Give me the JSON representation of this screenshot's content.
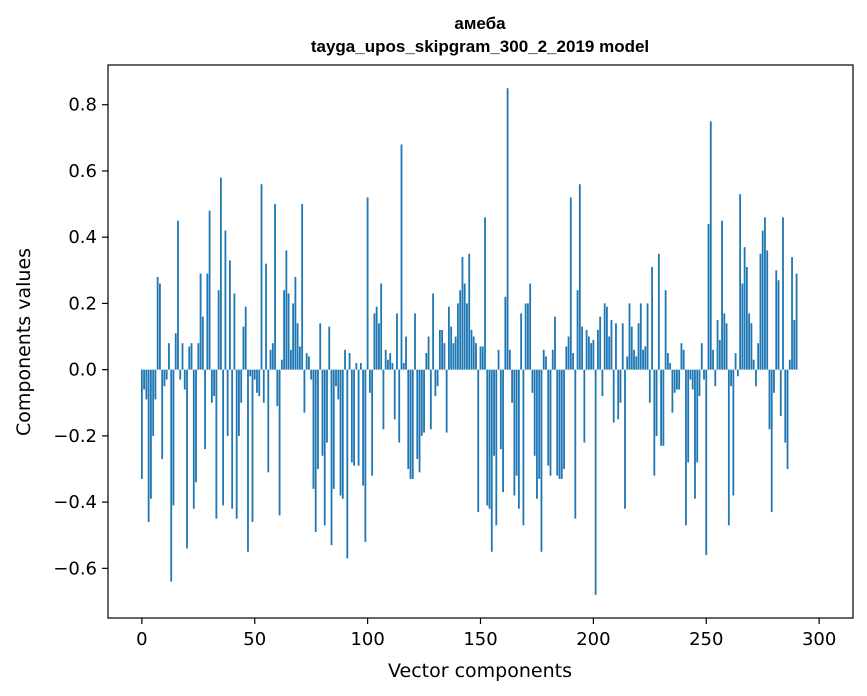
{
  "chart_data": {
    "type": "bar",
    "title": "амеба",
    "subtitle": "tayga_upos_skipgram_300_2_2019 model",
    "xlabel": "Vector components",
    "ylabel": "Components values",
    "xlim": [
      -15,
      315
    ],
    "ylim": [
      -0.75,
      0.92
    ],
    "xticks": [
      0,
      50,
      100,
      150,
      200,
      250,
      300
    ],
    "yticks": [
      -0.6,
      -0.4,
      -0.2,
      0.0,
      0.2,
      0.4,
      0.6,
      0.8
    ],
    "ytick_labels": [
      "−0.6",
      "−0.4",
      "−0.2",
      "0.0",
      "0.2",
      "0.4",
      "0.6",
      "0.8"
    ],
    "bar_color": "#1f77b4",
    "grid": false,
    "values": [
      -0.33,
      -0.06,
      -0.09,
      -0.46,
      -0.39,
      -0.2,
      -0.09,
      0.28,
      0.26,
      -0.27,
      -0.05,
      -0.03,
      0.08,
      -0.64,
      -0.41,
      0.11,
      0.45,
      -0.03,
      0.08,
      -0.06,
      -0.54,
      0.07,
      0.08,
      -0.42,
      -0.34,
      0.08,
      0.29,
      0.16,
      -0.24,
      0.29,
      0.48,
      -0.1,
      -0.08,
      -0.45,
      0.24,
      0.58,
      -0.41,
      0.42,
      -0.2,
      0.33,
      -0.42,
      0.23,
      -0.45,
      -0.2,
      -0.1,
      0.13,
      0.19,
      -0.55,
      -0.02,
      -0.46,
      -0.03,
      -0.07,
      -0.08,
      0.56,
      -0.1,
      0.32,
      -0.31,
      0.06,
      0.08,
      0.5,
      -0.11,
      -0.44,
      0.03,
      0.24,
      0.36,
      0.23,
      0.06,
      0.2,
      0.28,
      0.14,
      0.07,
      0.5,
      -0.13,
      0.05,
      0.04,
      -0.03,
      -0.36,
      -0.49,
      -0.3,
      0.14,
      -0.26,
      -0.47,
      -0.22,
      0.13,
      -0.53,
      -0.36,
      -0.05,
      -0.09,
      -0.38,
      -0.39,
      0.06,
      -0.57,
      0.05,
      -0.28,
      -0.29,
      0.02,
      -0.29,
      0.02,
      -0.35,
      -0.52,
      0.52,
      -0.07,
      -0.32,
      0.17,
      0.19,
      0.14,
      0.26,
      -0.18,
      0.06,
      0.03,
      0.05,
      0.02,
      -0.15,
      0.17,
      -0.22,
      0.68,
      0.02,
      0.1,
      -0.3,
      -0.33,
      -0.33,
      0.17,
      -0.27,
      -0.31,
      -0.2,
      -0.19,
      0.05,
      0.1,
      -0.18,
      0.23,
      -0.08,
      -0.05,
      0.12,
      0.12,
      0.08,
      -0.19,
      0.19,
      0.13,
      0.08,
      0.1,
      0.2,
      0.24,
      0.34,
      0.26,
      0.2,
      0.35,
      0.12,
      0.1,
      0.08,
      -0.43,
      0.07,
      0.07,
      0.46,
      -0.41,
      -0.42,
      -0.55,
      -0.26,
      -0.47,
      0.06,
      -0.24,
      -0.37,
      0.22,
      0.85,
      0.06,
      -0.1,
      -0.38,
      -0.32,
      -0.42,
      0.17,
      -0.47,
      0.2,
      0.2,
      0.26,
      -0.07,
      -0.26,
      -0.39,
      -0.33,
      -0.55,
      0.06,
      0.04,
      -0.29,
      -0.32,
      0.06,
      0.16,
      -0.32,
      -0.33,
      -0.33,
      -0.3,
      0.07,
      0.1,
      0.52,
      0.05,
      -0.45,
      0.24,
      0.56,
      0.13,
      -0.22,
      0.12,
      0.1,
      0.08,
      0.09,
      -0.68,
      0.12,
      0.16,
      -0.08,
      0.2,
      0.19,
      0.1,
      0.15,
      -0.16,
      0.14,
      -0.15,
      -0.1,
      0.14,
      -0.42,
      0.04,
      0.2,
      0.13,
      0.06,
      0.04,
      0.14,
      0.2,
      0.06,
      0.07,
      0.2,
      -0.1,
      0.31,
      -0.32,
      -0.2,
      0.35,
      -0.23,
      -0.23,
      0.24,
      0.05,
      0.02,
      -0.13,
      -0.07,
      -0.06,
      -0.06,
      0.08,
      0.06,
      -0.47,
      -0.28,
      -0.03,
      -0.06,
      -0.39,
      -0.28,
      -0.08,
      0.08,
      -0.03,
      -0.56,
      0.44,
      0.75,
      0.06,
      -0.05,
      0.15,
      0.09,
      0.45,
      0.17,
      0.14,
      -0.47,
      -0.05,
      -0.38,
      0.05,
      -0.02,
      0.53,
      0.26,
      0.37,
      0.31,
      0.17,
      0.14,
      0.03,
      -0.05,
      0.08,
      0.35,
      0.42,
      0.46,
      0.36,
      -0.18,
      -0.43,
      -0.07,
      0.3,
      0.27,
      -0.14,
      0.46,
      -0.22,
      -0.3,
      0.03,
      0.34,
      0.15,
      0.29
    ]
  }
}
